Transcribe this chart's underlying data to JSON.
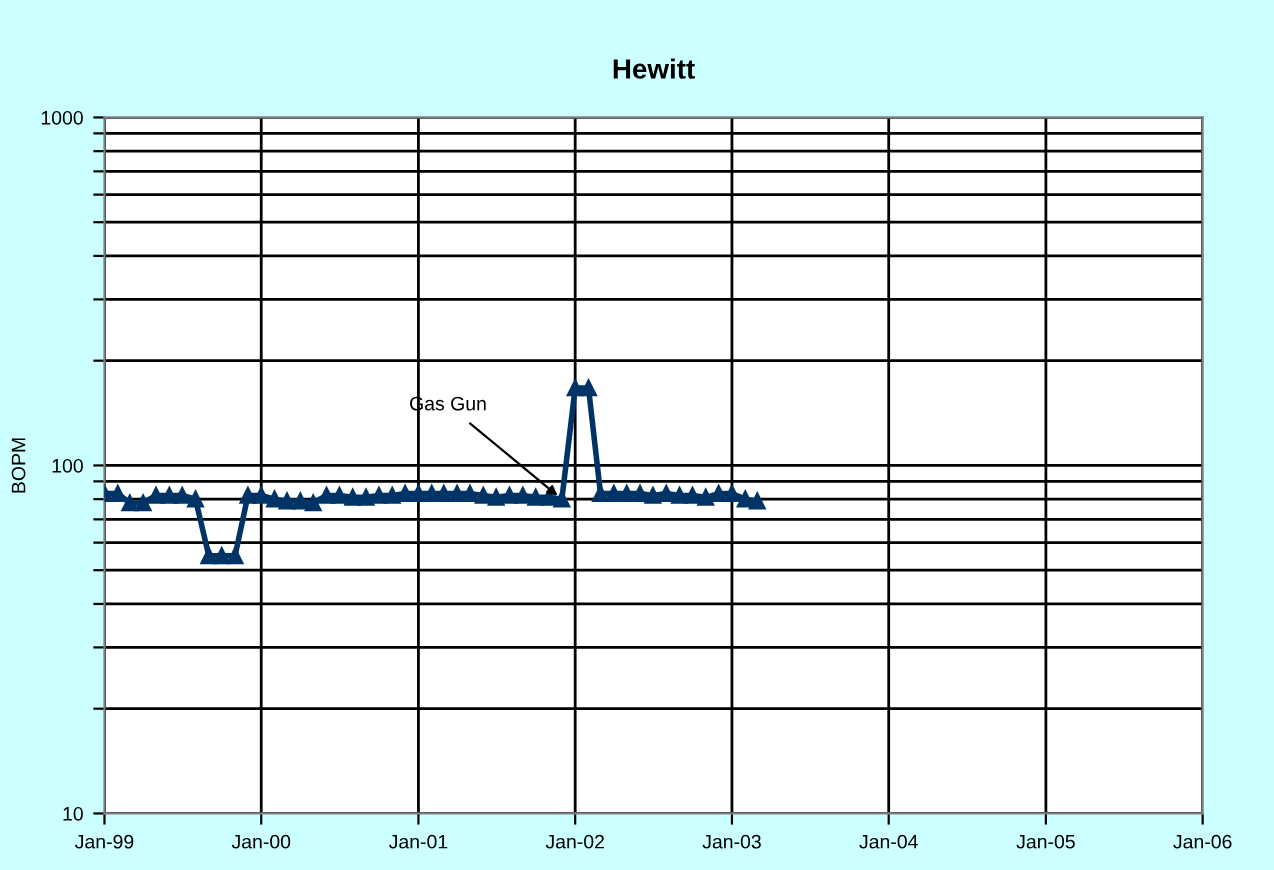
{
  "chart_data": {
    "type": "line",
    "title": "Hewitt",
    "ylabel": "BOPM",
    "x": [
      "1999-01",
      "1999-02",
      "1999-03",
      "1999-04",
      "1999-05",
      "1999-06",
      "1999-07",
      "1999-08",
      "1999-09",
      "1999-10",
      "1999-11",
      "1999-12",
      "2000-01",
      "2000-02",
      "2000-03",
      "2000-04",
      "2000-05",
      "2000-06",
      "2000-07",
      "2000-08",
      "2000-09",
      "2000-10",
      "2000-11",
      "2000-12",
      "2001-01",
      "2001-02",
      "2001-03",
      "2001-04",
      "2001-05",
      "2001-06",
      "2001-07",
      "2001-08",
      "2001-09",
      "2001-10",
      "2001-11",
      "2001-12",
      "2002-01",
      "2002-02",
      "2002-03",
      "2002-04",
      "2002-05",
      "2002-06",
      "2002-07",
      "2002-08",
      "2002-09",
      "2002-10",
      "2002-11",
      "2002-12",
      "2003-01",
      "2003-02",
      "2003-03"
    ],
    "series": [
      {
        "color": "#003366",
        "values": [
          83,
          83,
          78,
          78,
          82,
          82,
          82,
          80,
          55,
          55,
          55,
          82,
          82,
          80,
          79,
          79,
          78,
          82,
          82,
          81,
          81,
          82,
          82,
          83,
          83,
          83,
          83,
          83,
          83,
          82,
          81,
          82,
          82,
          81,
          81,
          80,
          167,
          167,
          83,
          83,
          83,
          83,
          82,
          83,
          82,
          82,
          81,
          83,
          83,
          80,
          79
        ]
      }
    ],
    "marker": "triangle",
    "line_style": "solid",
    "log": "y",
    "grid": true,
    "legend": false,
    "ylim": [
      10,
      1000
    ],
    "yticks": [
      10,
      {
        "value": 20,
        "label": null
      },
      {
        "value": 30,
        "label": null
      },
      {
        "value": 40,
        "label": null
      },
      {
        "value": 50,
        "label": null
      },
      {
        "value": 60,
        "label": null
      },
      {
        "value": 70,
        "label": null
      },
      {
        "value": 80,
        "label": null
      },
      {
        "value": 90,
        "label": null
      },
      100,
      {
        "value": 200,
        "label": null
      },
      {
        "value": 300,
        "label": null
      },
      {
        "value": 400,
        "label": null
      },
      {
        "value": 500,
        "label": null
      },
      {
        "value": 600,
        "label": null
      },
      {
        "value": 700,
        "label": null
      },
      {
        "value": 800,
        "label": null
      },
      {
        "value": 900,
        "label": null
      },
      1000
    ],
    "xlim": [
      "1999-01",
      "2006-01"
    ],
    "xticks": [
      {
        "value": "1999-01",
        "label": "Jan-99"
      },
      {
        "value": "2000-01",
        "label": "Jan-00"
      },
      {
        "value": "2001-01",
        "label": "Jan-01"
      },
      {
        "value": "2002-01",
        "label": "Jan-02"
      },
      {
        "value": "2003-01",
        "label": "Jan-03"
      },
      {
        "value": "2004-01",
        "label": "Jan-04"
      },
      {
        "value": "2005-01",
        "label": "Jan-05"
      },
      {
        "value": "2006-01",
        "label": "Jan-06"
      }
    ],
    "annotations": [
      {
        "text": "Gas Gun",
        "x": "2001-12",
        "y": 80
      }
    ]
  }
}
